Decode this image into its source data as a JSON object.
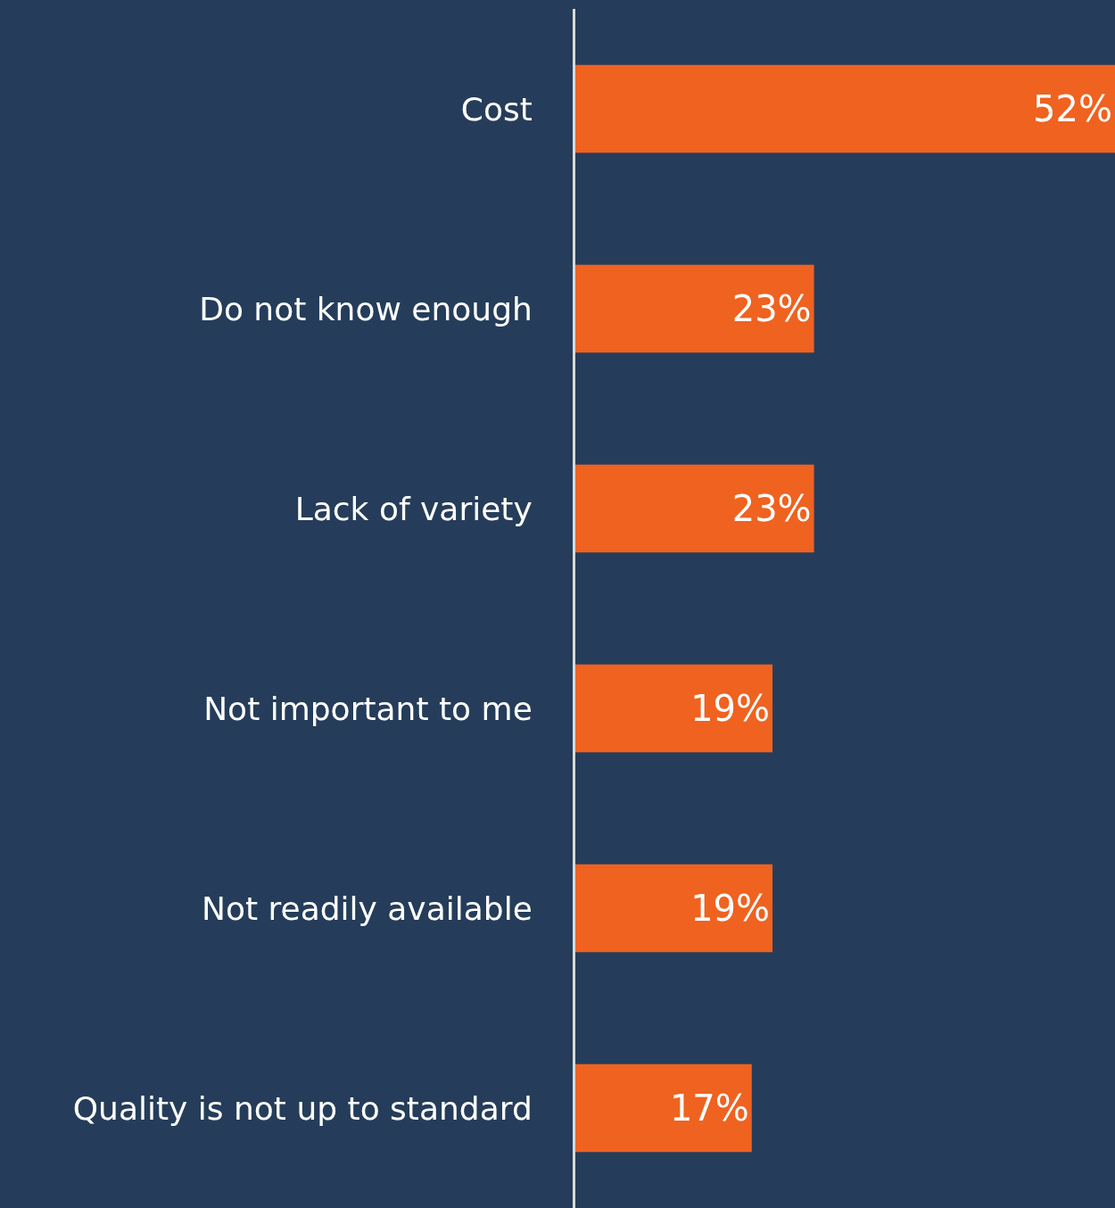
{
  "chart_data": {
    "type": "bar",
    "orientation": "horizontal",
    "categories": [
      "Cost",
      "Do not know enough",
      "Lack of variety",
      "Not important to me",
      "Not readily available",
      "Quality is not up to standard"
    ],
    "values": [
      52,
      23,
      23,
      19,
      19,
      17
    ],
    "value_labels": [
      "52%",
      "23%",
      "23%",
      "19%",
      "19%",
      "17%"
    ],
    "color": "#ef6220",
    "grid": false,
    "legend": false
  }
}
